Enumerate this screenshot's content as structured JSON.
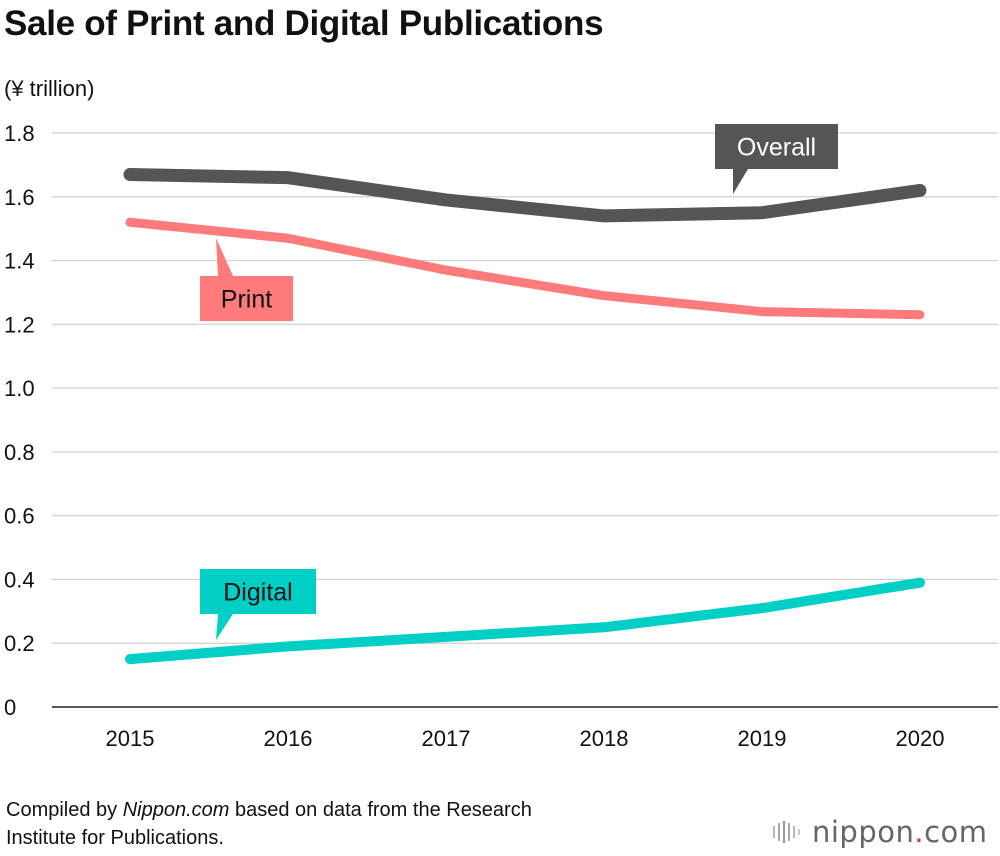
{
  "chart_data": {
    "type": "line",
    "title": "Sale of Print and Digital Publications",
    "ylabel": "(¥ trillion)",
    "xlabel": "",
    "x": [
      "2015",
      "2016",
      "2017",
      "2018",
      "2019",
      "2020"
    ],
    "ylim": [
      0,
      1.8
    ],
    "yticks": [
      "0",
      "0.2",
      "0.4",
      "0.6",
      "0.8",
      "1.0",
      "1.2",
      "1.4",
      "1.6",
      "1.8"
    ],
    "grid": true,
    "series": [
      {
        "name": "Overall",
        "values": [
          1.67,
          1.66,
          1.59,
          1.54,
          1.55,
          1.62
        ],
        "color": "#555555"
      },
      {
        "name": "Print",
        "values": [
          1.52,
          1.47,
          1.37,
          1.29,
          1.24,
          1.23
        ],
        "color": "#ff7b7b"
      },
      {
        "name": "Digital",
        "values": [
          0.15,
          0.19,
          0.22,
          0.25,
          0.31,
          0.39
        ],
        "color": "#00cfc6"
      }
    ]
  },
  "footer": {
    "prefix": "Compiled by ",
    "source_name": "Nippon.com",
    "suffix_line1": " based on data from the Research",
    "line2": "Institute for Publications."
  },
  "logo": {
    "name": "nippon",
    "dot": ".",
    "tld": "com"
  }
}
